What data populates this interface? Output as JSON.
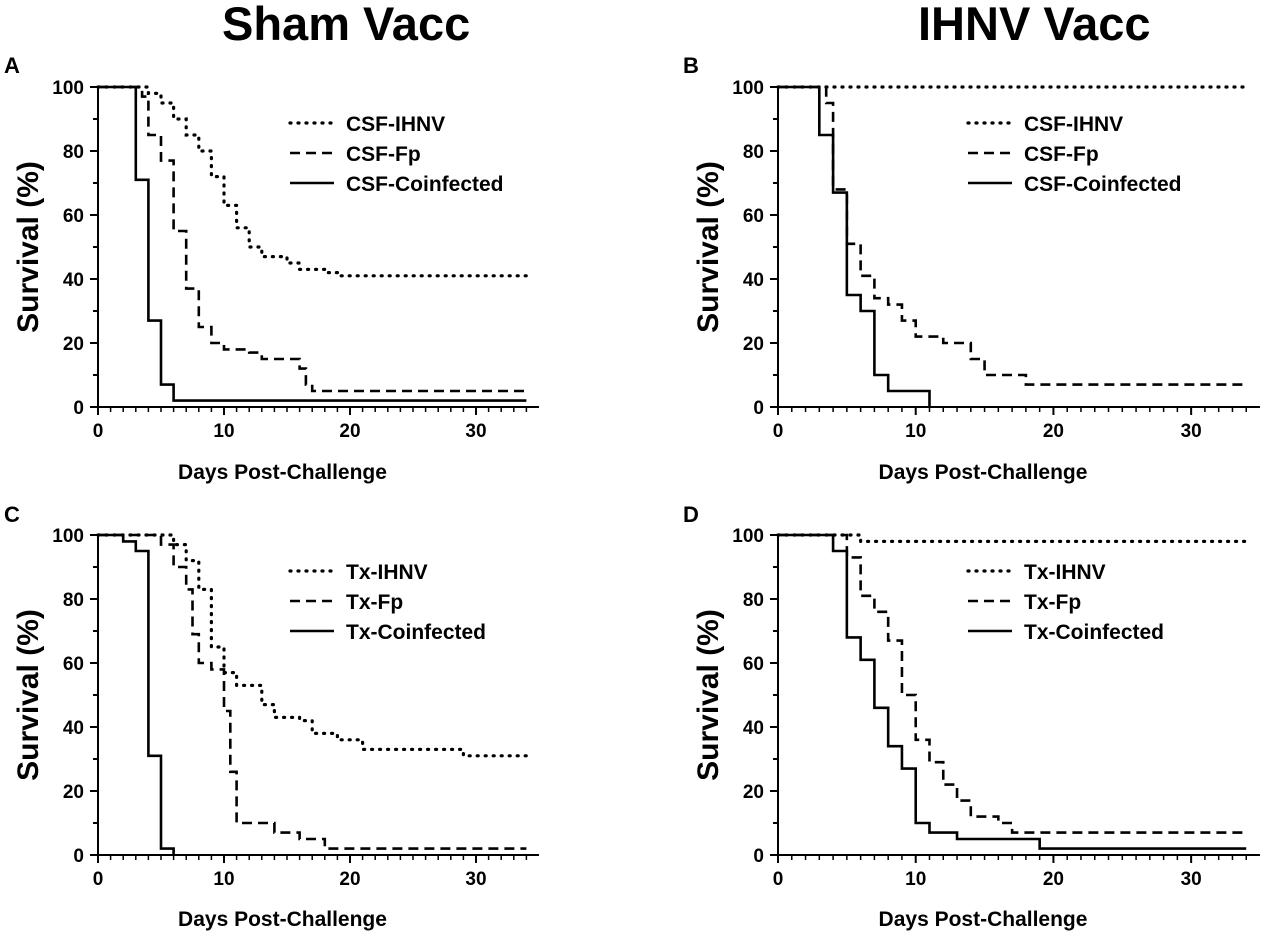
{
  "column_titles": {
    "left": "Sham Vacc",
    "right": "IHNV Vacc"
  },
  "chart_data": [
    {
      "type": "line",
      "panel_label": "A",
      "xlabel": "Days Post-Challenge",
      "ylabel": "Survival (%)",
      "xlim": [
        0,
        35
      ],
      "ylim": [
        0,
        100
      ],
      "xticks": [
        0,
        10,
        20,
        30
      ],
      "yticks": [
        0,
        20,
        40,
        60,
        80,
        100
      ],
      "legend_position": "top-right",
      "series": [
        {
          "name": "CSF-IHNV",
          "style": "dotted",
          "steps": [
            [
              0,
              100
            ],
            [
              3,
              100
            ],
            [
              4,
              98
            ],
            [
              5,
              95
            ],
            [
              6,
              90
            ],
            [
              7,
              85
            ],
            [
              8,
              80
            ],
            [
              9,
              72
            ],
            [
              10,
              63
            ],
            [
              11,
              56
            ],
            [
              12,
              50
            ],
            [
              13,
              47
            ],
            [
              15,
              45
            ],
            [
              16,
              43
            ],
            [
              18,
              42
            ],
            [
              19,
              41
            ],
            [
              34,
              41
            ]
          ]
        },
        {
          "name": "CSF-Fp",
          "style": "dashed",
          "steps": [
            [
              0,
              100
            ],
            [
              3,
              100
            ],
            [
              3.5,
              97
            ],
            [
              4,
              85
            ],
            [
              5,
              77
            ],
            [
              6,
              55
            ],
            [
              7,
              37
            ],
            [
              8,
              25
            ],
            [
              9,
              20
            ],
            [
              10,
              18
            ],
            [
              12,
              17
            ],
            [
              13,
              15
            ],
            [
              16,
              12
            ],
            [
              16.5,
              7
            ],
            [
              17,
              5
            ],
            [
              34,
              5
            ]
          ]
        },
        {
          "name": "CSF-Coinfected",
          "style": "solid",
          "steps": [
            [
              0,
              100
            ],
            [
              3,
              100
            ],
            [
              3,
              71
            ],
            [
              4,
              71
            ],
            [
              4,
              27
            ],
            [
              5,
              27
            ],
            [
              5,
              7
            ],
            [
              6,
              7
            ],
            [
              6,
              2
            ],
            [
              34,
              2
            ]
          ]
        }
      ]
    },
    {
      "type": "line",
      "panel_label": "B",
      "xlabel": "Days Post-Challenge",
      "ylabel": "Survival (%)",
      "xlim": [
        0,
        35
      ],
      "ylim": [
        0,
        100
      ],
      "xticks": [
        0,
        10,
        20,
        30
      ],
      "yticks": [
        0,
        20,
        40,
        60,
        80,
        100
      ],
      "legend_position": "top-right",
      "series": [
        {
          "name": "CSF-IHNV",
          "style": "dotted",
          "steps": [
            [
              0,
              100
            ],
            [
              34,
              100
            ]
          ]
        },
        {
          "name": "CSF-Fp",
          "style": "dashed",
          "steps": [
            [
              0,
              100
            ],
            [
              3,
              100
            ],
            [
              3.5,
              95
            ],
            [
              4,
              68
            ],
            [
              5,
              51
            ],
            [
              6,
              41
            ],
            [
              7,
              34
            ],
            [
              8,
              32
            ],
            [
              9,
              27
            ],
            [
              10,
              22
            ],
            [
              12,
              20
            ],
            [
              14,
              15
            ],
            [
              15,
              10
            ],
            [
              18,
              7
            ],
            [
              34,
              7
            ]
          ]
        },
        {
          "name": "CSF-Coinfected",
          "style": "solid",
          "steps": [
            [
              0,
              100
            ],
            [
              3,
              100
            ],
            [
              3,
              85
            ],
            [
              4,
              85
            ],
            [
              4,
              67
            ],
            [
              5,
              67
            ],
            [
              5,
              35
            ],
            [
              6,
              35
            ],
            [
              6,
              30
            ],
            [
              7,
              30
            ],
            [
              7,
              10
            ],
            [
              8,
              10
            ],
            [
              8,
              5
            ],
            [
              11,
              5
            ],
            [
              11,
              0
            ]
          ]
        }
      ]
    },
    {
      "type": "line",
      "panel_label": "C",
      "xlabel": "Days Post-Challenge",
      "ylabel": "Survival (%)",
      "xlim": [
        0,
        35
      ],
      "ylim": [
        0,
        100
      ],
      "xticks": [
        0,
        10,
        20,
        30
      ],
      "yticks": [
        0,
        20,
        40,
        60,
        80,
        100
      ],
      "legend_position": "top-right",
      "series": [
        {
          "name": "Tx-IHNV",
          "style": "dotted",
          "steps": [
            [
              0,
              100
            ],
            [
              5,
              100
            ],
            [
              6,
              97
            ],
            [
              7,
              92
            ],
            [
              8,
              83
            ],
            [
              9,
              65
            ],
            [
              10,
              57
            ],
            [
              11,
              53
            ],
            [
              13,
              47
            ],
            [
              14,
              43
            ],
            [
              16,
              42
            ],
            [
              17,
              38
            ],
            [
              19,
              36
            ],
            [
              21,
              33
            ],
            [
              29,
              31
            ],
            [
              33,
              31
            ],
            [
              34,
              29
            ]
          ]
        },
        {
          "name": "Tx-Fp",
          "style": "dashed",
          "steps": [
            [
              0,
              100
            ],
            [
              4,
              100
            ],
            [
              5,
              97
            ],
            [
              6,
              90
            ],
            [
              7,
              83
            ],
            [
              7.5,
              69
            ],
            [
              8,
              60
            ],
            [
              9,
              58
            ],
            [
              10,
              45
            ],
            [
              10.5,
              26
            ],
            [
              11,
              10
            ],
            [
              14,
              7
            ],
            [
              16,
              5
            ],
            [
              18,
              2
            ],
            [
              34,
              2
            ]
          ]
        },
        {
          "name": "Tx-Coinfected",
          "style": "solid",
          "steps": [
            [
              0,
              100
            ],
            [
              2,
              100
            ],
            [
              2,
              98
            ],
            [
              3,
              98
            ],
            [
              3,
              95
            ],
            [
              4,
              95
            ],
            [
              4,
              31
            ],
            [
              5,
              31
            ],
            [
              5,
              2
            ],
            [
              6,
              2
            ],
            [
              6,
              0
            ]
          ]
        }
      ]
    },
    {
      "type": "line",
      "panel_label": "D",
      "xlabel": "Days Post-Challenge",
      "ylabel": "Survival (%)",
      "xlim": [
        0,
        35
      ],
      "ylim": [
        0,
        100
      ],
      "xticks": [
        0,
        10,
        20,
        30
      ],
      "yticks": [
        0,
        20,
        40,
        60,
        80,
        100
      ],
      "legend_position": "top-right",
      "series": [
        {
          "name": "Tx-IHNV",
          "style": "dotted",
          "steps": [
            [
              0,
              100
            ],
            [
              5,
              100
            ],
            [
              6,
              98
            ],
            [
              33,
              98
            ],
            [
              34,
              97
            ]
          ]
        },
        {
          "name": "Tx-Fp",
          "style": "dashed",
          "steps": [
            [
              0,
              100
            ],
            [
              4,
              100
            ],
            [
              5,
              93
            ],
            [
              6,
              81
            ],
            [
              7,
              76
            ],
            [
              8,
              67
            ],
            [
              9,
              50
            ],
            [
              10,
              36
            ],
            [
              11,
              29
            ],
            [
              12,
              22
            ],
            [
              13,
              17
            ],
            [
              14,
              12
            ],
            [
              16,
              10
            ],
            [
              17,
              7
            ],
            [
              34,
              7
            ]
          ]
        },
        {
          "name": "Tx-Coinfected",
          "style": "solid",
          "steps": [
            [
              0,
              100
            ],
            [
              4,
              100
            ],
            [
              4,
              95
            ],
            [
              5,
              95
            ],
            [
              5,
              68
            ],
            [
              6,
              68
            ],
            [
              6,
              61
            ],
            [
              7,
              61
            ],
            [
              7,
              46
            ],
            [
              8,
              46
            ],
            [
              8,
              34
            ],
            [
              9,
              34
            ],
            [
              9,
              27
            ],
            [
              10,
              27
            ],
            [
              10,
              10
            ],
            [
              11,
              10
            ],
            [
              11,
              7
            ],
            [
              13,
              7
            ],
            [
              13,
              5
            ],
            [
              19,
              5
            ],
            [
              19,
              2
            ],
            [
              34,
              2
            ]
          ]
        }
      ]
    }
  ]
}
